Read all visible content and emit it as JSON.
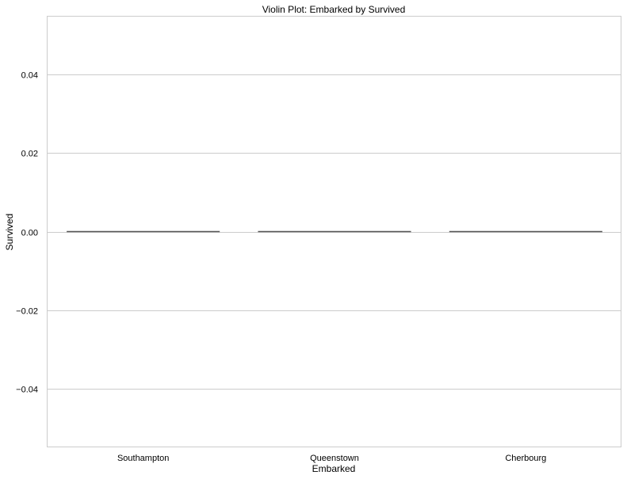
{
  "chart_data": {
    "type": "violin",
    "title": "Violin Plot: Embarked by Survived",
    "xlabel": "Embarked",
    "ylabel": "Survived",
    "categories": [
      "Southampton",
      "Queenstown",
      "Cherbourg"
    ],
    "values": [
      0,
      0,
      0
    ],
    "ylim": [
      -0.055,
      0.055
    ],
    "yticks": [
      0.04,
      0.02,
      0.0,
      -0.02,
      -0.04
    ],
    "ytick_labels": [
      "0.04",
      "0.02",
      "0.00",
      "−0.02",
      "−0.04"
    ],
    "grid": "horizontal",
    "colors": {
      "grid": "#cccccc",
      "spine": "#cccccc",
      "line": "#555555"
    }
  }
}
